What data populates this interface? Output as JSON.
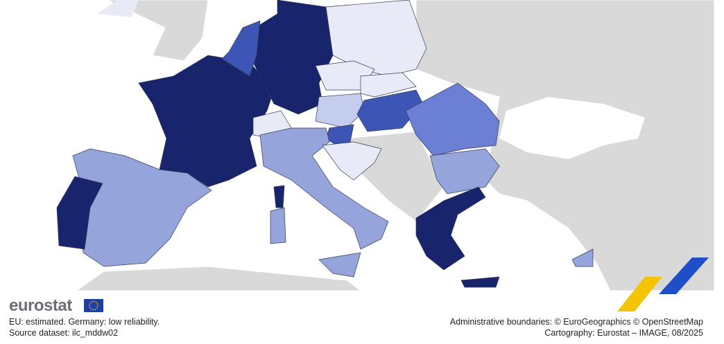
{
  "logo": "eurostat",
  "notes": [
    "EU: estimated. Germany: low reliability.",
    "Source dataset: ilc_mddw02"
  ],
  "credits": [
    "Administrative boundaries: © EuroGeographics © OpenStreetMap",
    "Cartography: Eurostat – IMAGE, 08/2025"
  ]
}
